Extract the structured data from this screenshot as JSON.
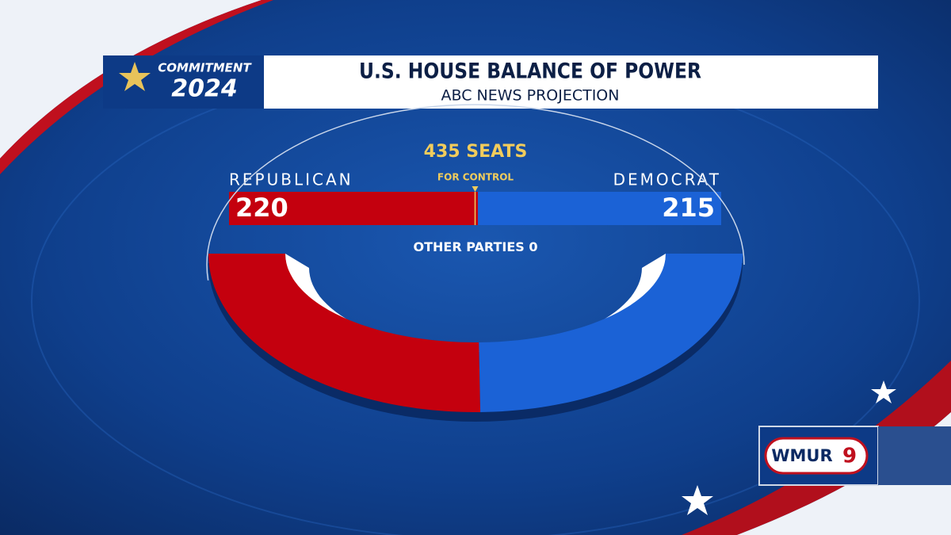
{
  "header": {
    "brand_top": "COMMITMENT",
    "brand_year": "2024",
    "title": "U.S. HOUSE BALANCE OF POWER",
    "subtitle": "ABC NEWS PROJECTION"
  },
  "chart_data": {
    "type": "balance",
    "total_seats": 435,
    "total_label": "SEATS",
    "control_label": "FOR CONTROL",
    "series": [
      {
        "name": "REPUBLICAN",
        "color": "#c4000e",
        "values": [
          220
        ]
      },
      {
        "name": "DEMOCRAT",
        "color": "#1b62d6",
        "values": [
          215
        ]
      }
    ],
    "other": {
      "name": "OTHER PARTIES",
      "value": 0
    }
  },
  "logo": {
    "text": "WMUR",
    "channel": "9"
  }
}
